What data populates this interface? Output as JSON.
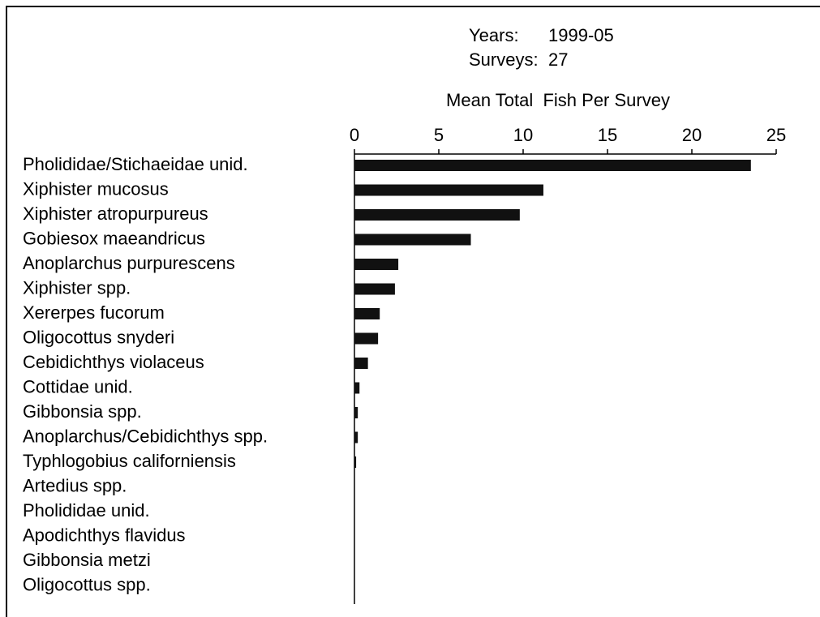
{
  "chart_data": {
    "type": "barh",
    "title": "Mean Total  Fish Per Survey",
    "annotations": [
      {
        "label": "Years:",
        "value": "1999-05"
      },
      {
        "label": "Surveys:",
        "value": "27"
      }
    ],
    "categories": [
      "Pholididae/Stichaeidae unid.",
      "Xiphister mucosus",
      "Xiphister atropurpureus",
      "Gobiesox maeandricus",
      "Anoplarchus purpurescens",
      "Xiphister spp.",
      "Xererpes fucorum",
      "Oligocottus snyderi",
      "Cebidichthys violaceus",
      "Cottidae unid.",
      "Gibbonsia spp.",
      "Anoplarchus/Cebidichthys spp.",
      "Typhlogobius californiensis",
      "Artedius spp.",
      "Pholididae unid.",
      "Apodichthys flavidus",
      "Gibbonsia metzi",
      "Oligocottus spp."
    ],
    "values": [
      23.5,
      11.2,
      9.8,
      6.9,
      2.6,
      2.4,
      1.5,
      1.4,
      0.8,
      0.3,
      0.2,
      0.2,
      0.1,
      0,
      0,
      0,
      0,
      0
    ],
    "color": "#111111",
    "xlim": [
      0,
      25
    ],
    "xticks": [
      0,
      5,
      10,
      15,
      20,
      25
    ]
  }
}
